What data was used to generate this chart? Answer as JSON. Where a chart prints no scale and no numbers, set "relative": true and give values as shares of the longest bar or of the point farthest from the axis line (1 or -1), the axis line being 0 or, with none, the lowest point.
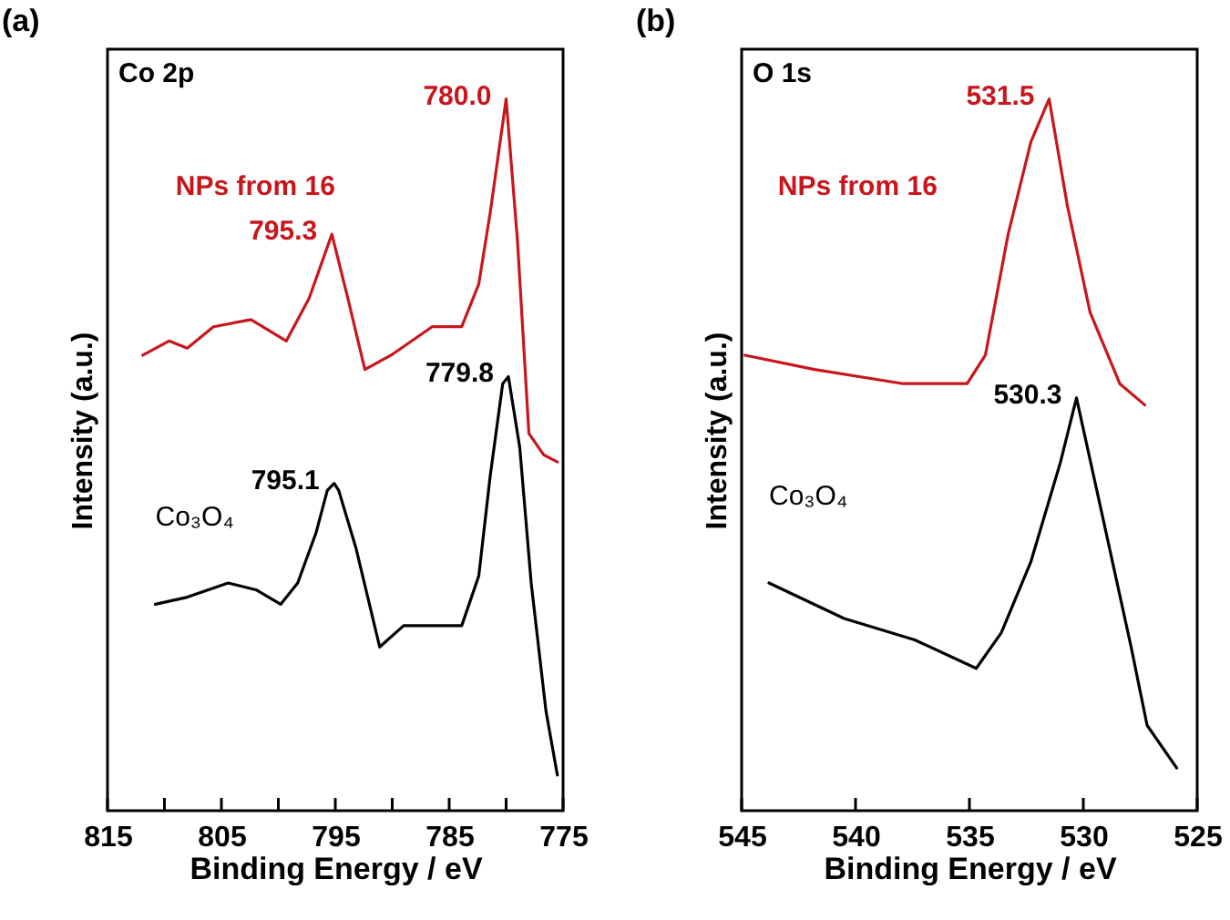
{
  "chart_data": [
    {
      "type": "line",
      "title": "(a)",
      "xlabel": "Binding Energy / eV",
      "ylabel": "Intensity (a.u.)",
      "relative": true,
      "legend": false,
      "grid": false,
      "xlim": [
        815,
        775
      ],
      "xticks": [
        815,
        {
          "value": 810,
          "label": null
        },
        805,
        {
          "value": 800,
          "label": null
        },
        795,
        {
          "value": 790,
          "label": null
        },
        785,
        {
          "value": 780,
          "label": null
        },
        775
      ],
      "annotations": [
        "Co 2p",
        {
          "text": "780.0",
          "x": 780.0,
          "y": 1.0
        },
        {
          "text": "795.3",
          "x": 795.3,
          "y": 0.81
        },
        {
          "text": "779.8",
          "x": 779.8,
          "y": 0.61
        },
        {
          "text": "795.1",
          "x": 795.1,
          "y": 0.46
        }
      ],
      "series": [
        {
          "name": "NPs from 16",
          "color": "#c8161d",
          "x": [
            811.9,
            809.6,
            808.0,
            805.7,
            802.4,
            799.3,
            797.3,
            795.3,
            793.9,
            792.4,
            790.1,
            786.5,
            783.9,
            782.4,
            781.4,
            780.0,
            779.0,
            778.0,
            776.7,
            775.5
          ],
          "values": [
            0.64,
            0.66,
            0.65,
            0.68,
            0.69,
            0.66,
            0.72,
            0.81,
            0.72,
            0.62,
            0.64,
            0.68,
            0.68,
            0.74,
            0.84,
            1.0,
            0.8,
            0.53,
            0.5,
            0.49
          ]
        },
        {
          "name": "Co₃O₄",
          "color": "#000000",
          "x": [
            810.8,
            808.0,
            804.4,
            801.9,
            799.8,
            798.3,
            796.7,
            795.7,
            795.1,
            794.7,
            793.2,
            791.1,
            789.0,
            786.0,
            783.9,
            782.4,
            781.4,
            780.3,
            779.8,
            778.8,
            777.8,
            776.5,
            775.5
          ],
          "values": [
            0.29,
            0.3,
            0.32,
            0.31,
            0.29,
            0.32,
            0.39,
            0.45,
            0.46,
            0.45,
            0.37,
            0.23,
            0.26,
            0.26,
            0.26,
            0.33,
            0.47,
            0.6,
            0.61,
            0.51,
            0.32,
            0.14,
            0.05
          ]
        }
      ]
    },
    {
      "type": "line",
      "title": "(b)",
      "xlabel": "Binding Energy / eV",
      "ylabel": "Intensity (a.u.)",
      "relative": true,
      "legend": false,
      "grid": false,
      "xlim": [
        545,
        525
      ],
      "xticks": [
        545,
        540,
        535,
        530,
        525
      ],
      "annotations": [
        "O 1s",
        {
          "text": "531.5",
          "x": 531.5,
          "y": 1.0
        },
        {
          "text": "530.3",
          "x": 530.3,
          "y": 0.58
        }
      ],
      "series": [
        {
          "name": "NPs from 16",
          "color": "#c8161d",
          "x": [
            544.85,
            541.8,
            537.9,
            535.1,
            534.3,
            533.3,
            532.3,
            531.5,
            530.7,
            529.7,
            528.4,
            527.3
          ],
          "values": [
            0.64,
            0.62,
            0.6,
            0.6,
            0.64,
            0.81,
            0.94,
            1.0,
            0.85,
            0.7,
            0.6,
            0.57
          ]
        },
        {
          "name": "Co₃O₄",
          "color": "#000000",
          "x": [
            543.8,
            540.5,
            537.4,
            534.7,
            533.6,
            532.3,
            531.0,
            530.3,
            529.2,
            527.9,
            527.2,
            525.9
          ],
          "values": [
            0.32,
            0.27,
            0.24,
            0.2,
            0.25,
            0.35,
            0.49,
            0.58,
            0.42,
            0.23,
            0.12,
            0.06
          ]
        }
      ]
    }
  ]
}
